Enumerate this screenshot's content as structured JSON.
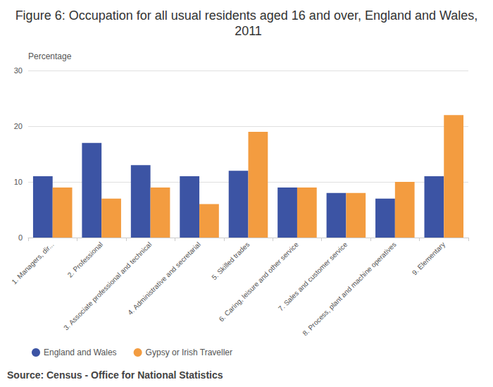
{
  "chart_data": {
    "type": "bar",
    "title": "Figure 6: Occupation for all usual residents aged 16 and over, England and Wales, 2011",
    "y_label": "Percentage",
    "source": "Source: Census - Office for National Statistics",
    "categories": [
      "1. Managers, dir...",
      "2. Professional",
      "3. Associate professional and technical",
      "4. Administrative and secretarial",
      "5. Skilled trades",
      "6. Caring, leisure and other service",
      "7. Sales and customer service",
      "8. Process, plant and machine operatives",
      "9. Elementary"
    ],
    "series": [
      {
        "name": "England and Wales",
        "color": "#3c54a4",
        "values": [
          11,
          17,
          13,
          11,
          12,
          9,
          8,
          7,
          11
        ]
      },
      {
        "name": "Gypsy or Irish Traveller",
        "color": "#f39c40",
        "values": [
          9,
          7,
          9,
          6,
          19,
          9,
          8,
          10,
          22
        ]
      }
    ],
    "ylim": [
      0,
      30
    ],
    "yticks": [
      0,
      10,
      20,
      30
    ],
    "grid": true,
    "legend": "bottom"
  }
}
